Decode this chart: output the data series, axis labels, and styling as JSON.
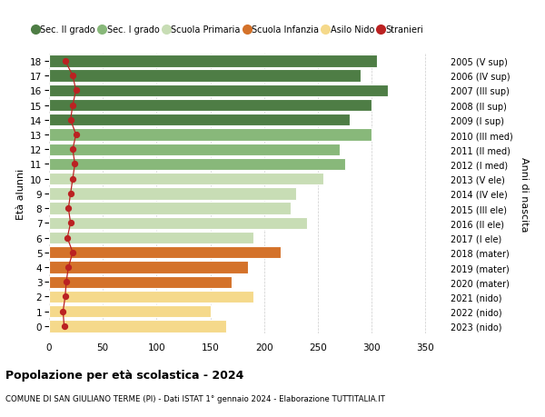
{
  "ages": [
    18,
    17,
    16,
    15,
    14,
    13,
    12,
    11,
    10,
    9,
    8,
    7,
    6,
    5,
    4,
    3,
    2,
    1,
    0
  ],
  "bar_values": [
    305,
    290,
    315,
    300,
    280,
    300,
    270,
    275,
    255,
    230,
    225,
    240,
    190,
    215,
    185,
    170,
    190,
    150,
    165
  ],
  "stranieri": [
    15,
    22,
    25,
    22,
    20,
    25,
    22,
    24,
    22,
    20,
    18,
    20,
    17,
    22,
    18,
    16,
    15,
    13,
    14
  ],
  "right_labels": [
    "2005 (V sup)",
    "2006 (IV sup)",
    "2007 (III sup)",
    "2008 (II sup)",
    "2009 (I sup)",
    "2010 (III med)",
    "2011 (II med)",
    "2012 (I med)",
    "2013 (V ele)",
    "2014 (IV ele)",
    "2015 (III ele)",
    "2016 (II ele)",
    "2017 (I ele)",
    "2018 (mater)",
    "2019 (mater)",
    "2020 (mater)",
    "2021 (nido)",
    "2022 (nido)",
    "2023 (nido)"
  ],
  "colors": {
    "sec2": "#4e7d45",
    "sec1": "#88b87a",
    "primaria": "#c8ddb5",
    "infanzia": "#d4722a",
    "nido": "#f5d98b",
    "stranieri_dot": "#bb2222",
    "stranieri_line": "#bb2222"
  },
  "legend_labels": [
    "Sec. II grado",
    "Sec. I grado",
    "Scuola Primaria",
    "Scuola Infanzia",
    "Asilo Nido",
    "Stranieri"
  ],
  "title": "Popolazione per età scolastica - 2024",
  "subtitle": "COMUNE DI SAN GIULIANO TERME (PI) - Dati ISTAT 1° gennaio 2024 - Elaborazione TUTTITALIA.IT",
  "ylabel_left": "Età alunni",
  "ylabel_right": "Anni di nascita",
  "xlim": [
    0,
    370
  ],
  "bar_height": 0.82,
  "background_color": "#ffffff",
  "grid_color": "#cccccc"
}
